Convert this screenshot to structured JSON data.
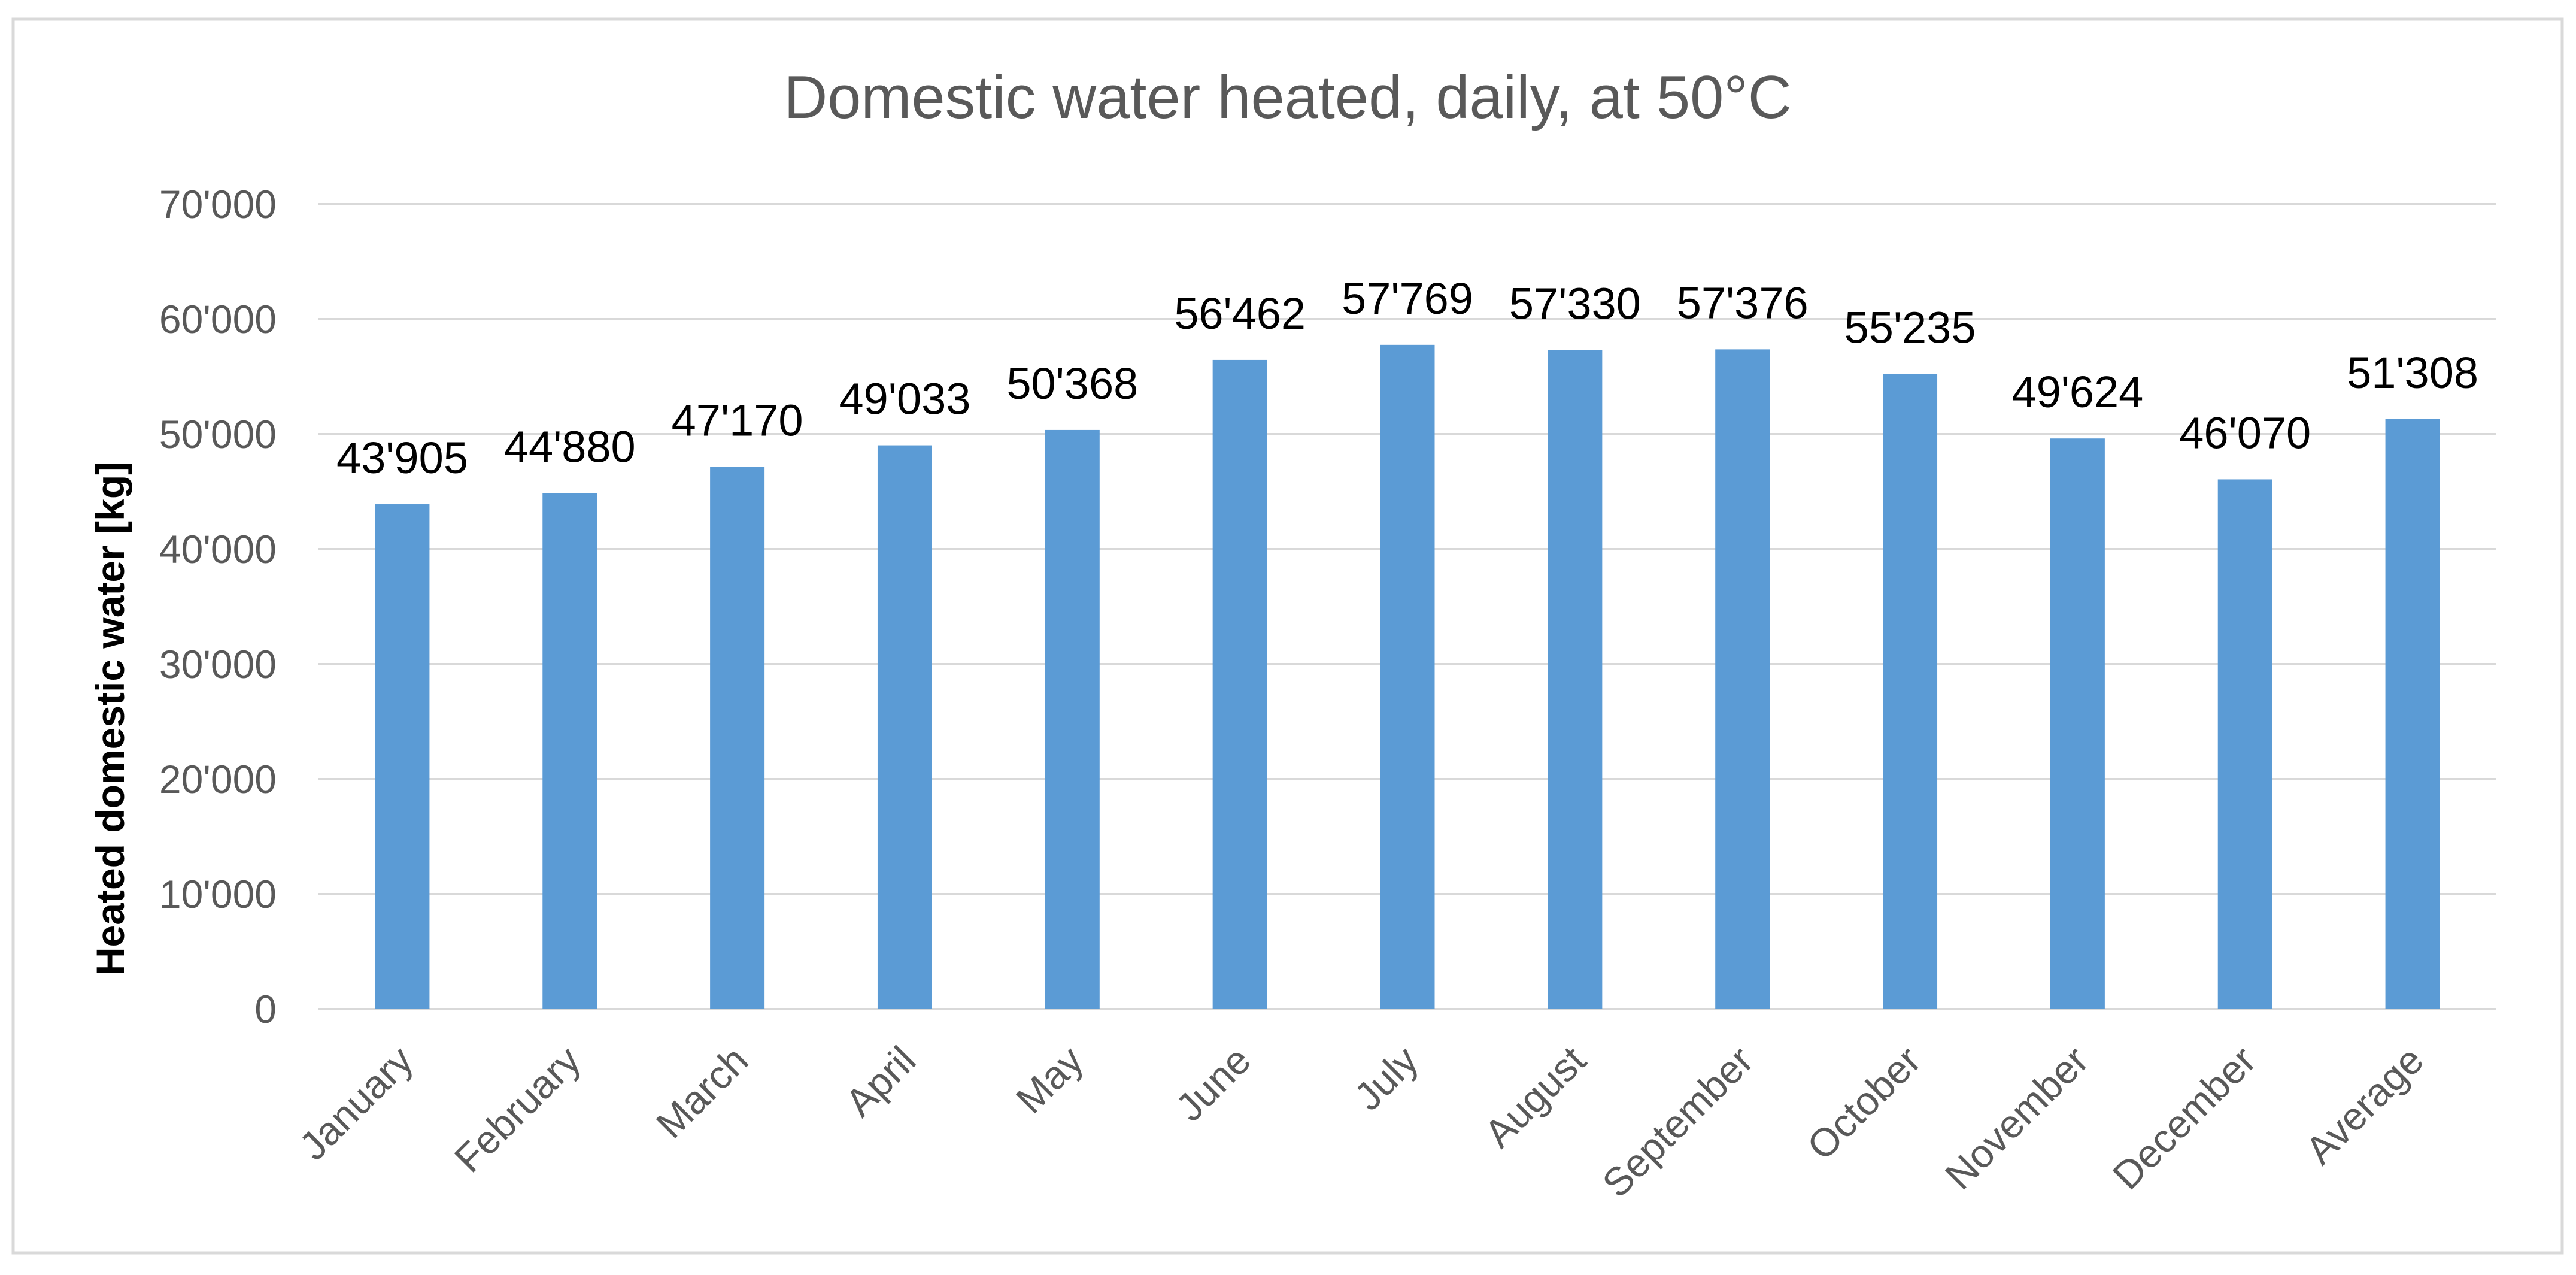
{
  "chart_data": {
    "type": "bar",
    "title": "Domestic water heated, daily, at 50°C",
    "xlabel": "",
    "ylabel": "Heated domestic water [kg]",
    "categories": [
      "January",
      "February",
      "March",
      "April",
      "May",
      "June",
      "July",
      "August",
      "September",
      "October",
      "November",
      "December",
      "Average"
    ],
    "values": [
      43905,
      44880,
      47170,
      49033,
      50368,
      56462,
      57769,
      57330,
      57376,
      55235,
      49624,
      46070,
      51308
    ],
    "data_labels": [
      "43'905",
      "44'880",
      "47'170",
      "49'033",
      "50'368",
      "56'462",
      "57'769",
      "57'330",
      "57'376",
      "55'235",
      "49'624",
      "46'070",
      "51'308"
    ],
    "ylim": [
      0,
      70000
    ],
    "yticks": [
      0,
      10000,
      20000,
      30000,
      40000,
      50000,
      60000,
      70000
    ],
    "ytick_labels": [
      "0",
      "10'000",
      "20'000",
      "30'000",
      "40'000",
      "50'000",
      "60'000",
      "70'000"
    ],
    "grid": true,
    "legend": "none",
    "bar_color": "#5b9bd5"
  }
}
